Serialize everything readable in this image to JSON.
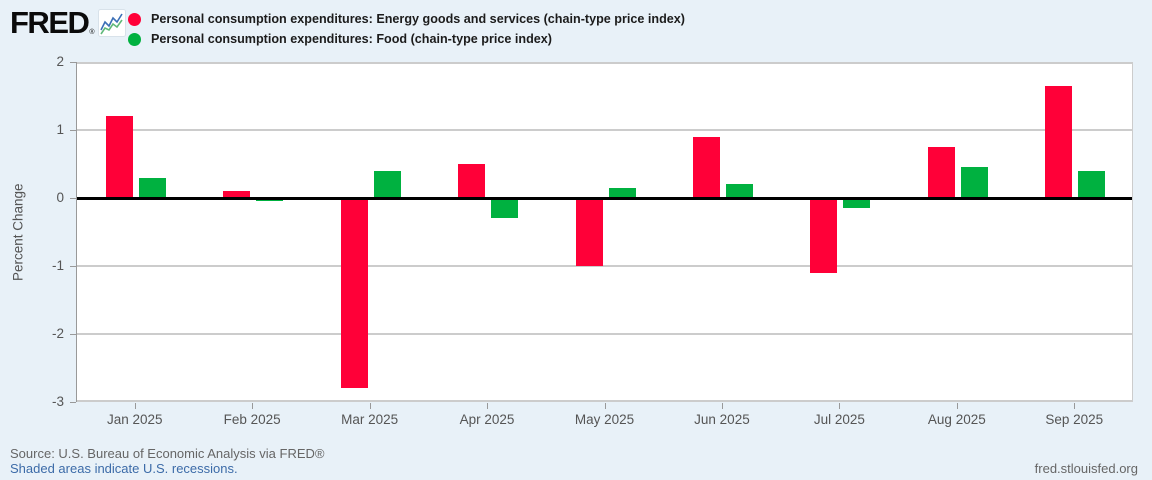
{
  "header": {
    "logo_text": "FRED",
    "logo_registered": "®",
    "legend": [
      {
        "label": "Personal consumption expenditures: Energy goods and services (chain-type price index)",
        "color": "#ff0038"
      },
      {
        "label": "Personal consumption expenditures: Food (chain-type price index)",
        "color": "#00b140"
      }
    ]
  },
  "chart_data": {
    "type": "bar",
    "categories": [
      "Jan 2025",
      "Feb 2025",
      "Mar 2025",
      "Apr 2025",
      "May 2025",
      "Jun 2025",
      "Jul 2025",
      "Aug 2025",
      "Sep 2025"
    ],
    "series": [
      {
        "name": "Personal consumption expenditures: Energy goods and services (chain-type price index)",
        "color": "#ff0038",
        "values": [
          1.2,
          0.1,
          -2.8,
          0.5,
          -1.0,
          0.9,
          -1.1,
          0.75,
          1.65
        ]
      },
      {
        "name": "Personal consumption expenditures: Food (chain-type price index)",
        "color": "#00b140",
        "values": [
          0.3,
          -0.05,
          0.4,
          -0.3,
          0.15,
          0.2,
          -0.15,
          0.45,
          0.4
        ]
      }
    ],
    "title": "",
    "xlabel": "",
    "ylabel": "Percent Change",
    "ylim": [
      -3,
      2
    ],
    "yticks": [
      2,
      1,
      0,
      -1,
      -2,
      -3
    ],
    "grid": true,
    "legend_position": "top",
    "zero_line_color": "#000000",
    "gridline_color": "#cccccc"
  },
  "footer": {
    "source": "Source: U.S. Bureau of Economic Analysis via FRED®",
    "recession_note": "Shaded areas indicate U.S. recessions.",
    "site": "fred.stlouisfed.org"
  },
  "icons": {
    "sparkline_icon": "fred-sparkline-chart"
  },
  "colors": {
    "page_background": "#e8f1f8",
    "plot_background": "#ffffff",
    "axis_text": "#555555",
    "footer_text": "#666666",
    "link_blue": "#3c6ba8",
    "legend_text": "#1c1c1c"
  }
}
